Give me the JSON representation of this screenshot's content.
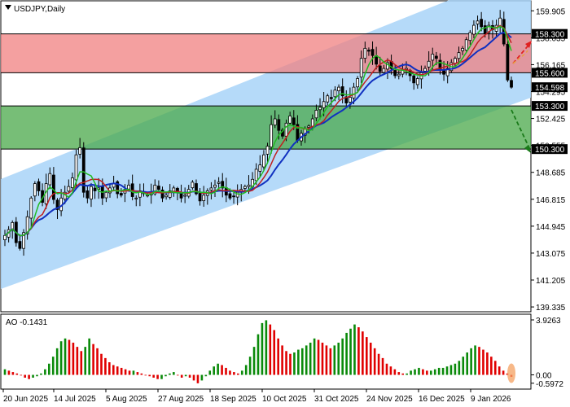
{
  "chart_data": [
    {
      "type": "candlestick",
      "symbol_label": "USDJPY,Daily",
      "y_ticks": [
        "159.905",
        "158.035",
        "156.165",
        "154.295",
        "152.425",
        "150.555",
        "148.685",
        "146.815",
        "144.945",
        "143.075",
        "141.205",
        "139.335"
      ],
      "ylim": [
        139.0,
        160.6
      ],
      "x_ticks": [
        "20 Jun 2025",
        "14 Jul 2025",
        "5 Aug 2025",
        "27 Aug 2025",
        "18 Sep 2025",
        "10 Oct 2025",
        "31 Oct 2025",
        "24 Nov 2025",
        "16 Dec 2025",
        "9 Jan 2026"
      ],
      "levels": [
        {
          "label": "158.300",
          "value": 158.3,
          "color": "#000000"
        },
        {
          "label": "155.600",
          "value": 155.6,
          "color": "#000000"
        },
        {
          "label": "154.598",
          "value": 154.598,
          "color": "#000000"
        },
        {
          "label": "153.300",
          "value": 153.3,
          "color": "#000000"
        },
        {
          "label": "150.300",
          "value": 150.3,
          "color": "#000000"
        }
      ],
      "zones": [
        {
          "name": "resistance",
          "from": 155.6,
          "to": 158.3,
          "color": "#f08080"
        },
        {
          "name": "support",
          "from": 150.3,
          "to": 153.3,
          "color": "#4aa84a"
        }
      ],
      "channel_color": "#a8d4f8",
      "ma_colors": {
        "fast": "#22bb22",
        "mid": "#c02020",
        "slow": "#1030c0"
      },
      "close_path": [
        144.3,
        144.7,
        145.2,
        143.8,
        143.4,
        144.5,
        145.6,
        146.9,
        147.9,
        147.4,
        146.6,
        147.9,
        148.6,
        146.8,
        146.1,
        146.9,
        147.3,
        147.7,
        148.3,
        149.9,
        150.4,
        147.3,
        146.9,
        147.7,
        147.4,
        147.6,
        146.9,
        147.3,
        147.6,
        147.9,
        147.2,
        147.1,
        147.5,
        147.8,
        147.0,
        146.9,
        147.4,
        147.2,
        147.1,
        147.3,
        147.8,
        147.5,
        146.9,
        147.1,
        147.4,
        147.6,
        147.3,
        146.9,
        147.1,
        147.5,
        148.0,
        147.2,
        146.7,
        147.1,
        147.4,
        147.6,
        147.8,
        148.0,
        147.6,
        147.1,
        146.9,
        147.0,
        147.3,
        147.5,
        147.7,
        147.8,
        148.2,
        148.9,
        149.2,
        149.9,
        150.5,
        152.0,
        152.4,
        151.6,
        151.2,
        152.1,
        152.6,
        152.0,
        150.9,
        151.4,
        151.7,
        151.9,
        152.4,
        153.0,
        153.2,
        153.6,
        154.0,
        153.8,
        154.4,
        154.6,
        154.0,
        153.5,
        153.9,
        154.6,
        155.2,
        156.6,
        157.3,
        157.1,
        156.8,
        156.2,
        155.7,
        155.9,
        156.3,
        155.9,
        155.4,
        155.5,
        155.8,
        155.9,
        155.4,
        154.9,
        155.2,
        155.6,
        155.9,
        156.4,
        156.9,
        156.6,
        155.8,
        155.5,
        155.9,
        156.3,
        156.6,
        157.0,
        157.3,
        157.9,
        158.4,
        158.9,
        159.2,
        158.8,
        158.3,
        158.9,
        158.6,
        158.9,
        159.4,
        157.6,
        155.1,
        154.6
      ],
      "ao_value_label": "AO -0.1431",
      "ao_ticks": [
        "3.9263",
        "0.00",
        "-0.5972"
      ],
      "ao_ylim": [
        -0.9,
        4.1
      ],
      "ao_colors": {
        "up": "#0a8a0a",
        "down": "#e00000"
      },
      "ao_values": [
        0.4,
        0.3,
        0.2,
        0.1,
        0.0,
        -0.2,
        -0.3,
        -0.2,
        -0.1,
        0.1,
        0.4,
        0.8,
        1.3,
        1.9,
        2.4,
        2.6,
        2.5,
        2.3,
        2.0,
        1.7,
        2.0,
        2.6,
        2.2,
        1.9,
        1.5,
        1.2,
        0.9,
        0.7,
        0.6,
        0.5,
        0.4,
        0.3,
        0.3,
        0.2,
        0.1,
        0.0,
        -0.1,
        -0.2,
        -0.3,
        -0.3,
        -0.1,
        0.1,
        0.2,
        0.0,
        -0.2,
        -0.1,
        -0.2,
        -0.4,
        -0.6,
        -0.4,
        -0.1,
        0.3,
        0.6,
        0.8,
        0.7,
        0.5,
        0.3,
        0.2,
        0.1,
        0.3,
        0.7,
        1.3,
        2.0,
        2.9,
        3.7,
        3.9,
        3.6,
        3.2,
        2.6,
        2.1,
        1.7,
        1.5,
        1.6,
        1.8,
        1.9,
        2.1,
        2.3,
        2.6,
        2.5,
        2.3,
        2.1,
        1.9,
        2.1,
        2.3,
        2.6,
        3.0,
        3.3,
        3.6,
        3.4,
        3.1,
        2.7,
        2.3,
        1.9,
        1.5,
        1.2,
        0.8,
        0.6,
        0.4,
        0.2,
        0.1,
        0.1,
        0.3,
        0.4,
        0.5,
        0.4,
        0.3,
        0.3,
        0.4,
        0.5,
        0.5,
        0.6,
        0.7,
        0.8,
        1.0,
        1.3,
        1.6,
        1.9,
        2.1,
        2.0,
        1.8,
        1.6,
        1.3,
        1.0,
        0.6,
        0.3,
        0.1,
        -0.14
      ]
    }
  ]
}
